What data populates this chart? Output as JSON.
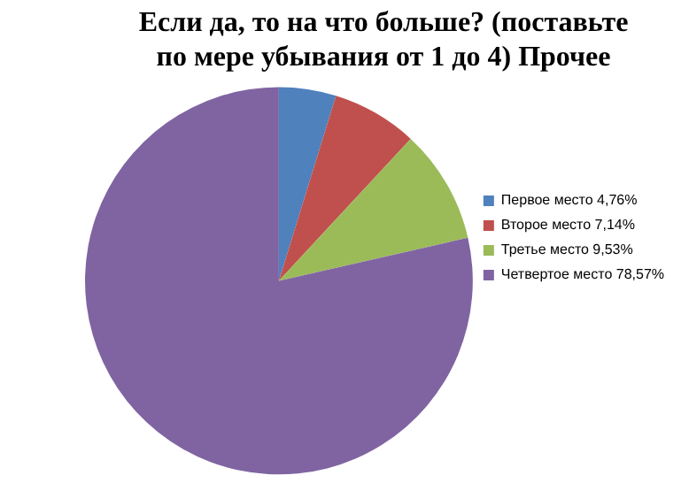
{
  "chart_data": {
    "type": "pie",
    "title": "Если да, то на что больше? (поставьте по мере убывания от 1 до 4) Прочее",
    "categories": [
      "Первое место",
      "Второе место",
      "Третье место",
      "Четвертое место"
    ],
    "values": [
      4.76,
      7.14,
      9.53,
      78.57
    ],
    "value_labels": [
      "4,76%",
      "7,14%",
      "9,53%",
      "78,57%"
    ],
    "colors": [
      "#4f81bd",
      "#c0504d",
      "#9bbb59",
      "#8064a2"
    ],
    "legend": "right"
  }
}
